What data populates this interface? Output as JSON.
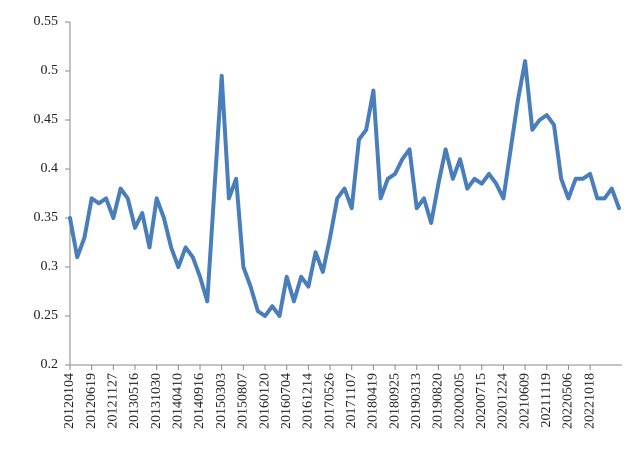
{
  "chart_data": {
    "type": "line",
    "categories": [
      "20120104",
      null,
      null,
      "20120619",
      null,
      null,
      "20121127",
      null,
      null,
      "20130516",
      null,
      null,
      "20131030",
      null,
      null,
      "20140410",
      null,
      null,
      "20140916",
      null,
      null,
      "20150303",
      null,
      null,
      "20150807",
      null,
      null,
      "20160120",
      null,
      null,
      "20160704",
      null,
      null,
      "20161214",
      null,
      null,
      "20170526",
      null,
      null,
      "20171107",
      null,
      null,
      "20180419",
      null,
      null,
      "20180925",
      null,
      null,
      "20190313",
      null,
      null,
      "20190820",
      null,
      null,
      "20200205",
      null,
      null,
      "20200715",
      null,
      null,
      "20201224",
      null,
      null,
      "20210609",
      null,
      null,
      "20211119",
      null,
      null,
      "20220506",
      null,
      null,
      "20221018",
      null,
      null,
      null,
      null
    ],
    "values": [
      0.35,
      0.31,
      0.33,
      0.37,
      0.365,
      0.37,
      0.35,
      0.38,
      0.37,
      0.34,
      0.355,
      0.32,
      0.37,
      0.35,
      0.32,
      0.3,
      0.32,
      0.31,
      0.29,
      0.265,
      0.38,
      0.495,
      0.37,
      0.39,
      0.3,
      0.28,
      0.255,
      0.25,
      0.26,
      0.25,
      0.29,
      0.265,
      0.29,
      0.28,
      0.315,
      0.295,
      0.33,
      0.37,
      0.38,
      0.36,
      0.43,
      0.44,
      0.48,
      0.37,
      0.39,
      0.395,
      0.41,
      0.42,
      0.36,
      0.37,
      0.345,
      0.385,
      0.42,
      0.39,
      0.41,
      0.38,
      0.39,
      0.385,
      0.395,
      0.385,
      0.37,
      0.42,
      0.47,
      0.51,
      0.44,
      0.45,
      0.455,
      0.445,
      0.39,
      0.37,
      0.39,
      0.39,
      0.395,
      0.37,
      0.37,
      0.38,
      0.36
    ],
    "color": "#4a7ebb",
    "ylim": [
      0.2,
      0.55
    ],
    "yticks": [
      0.2,
      0.25,
      0.3,
      0.35,
      0.4,
      0.45,
      0.5,
      0.55
    ]
  }
}
